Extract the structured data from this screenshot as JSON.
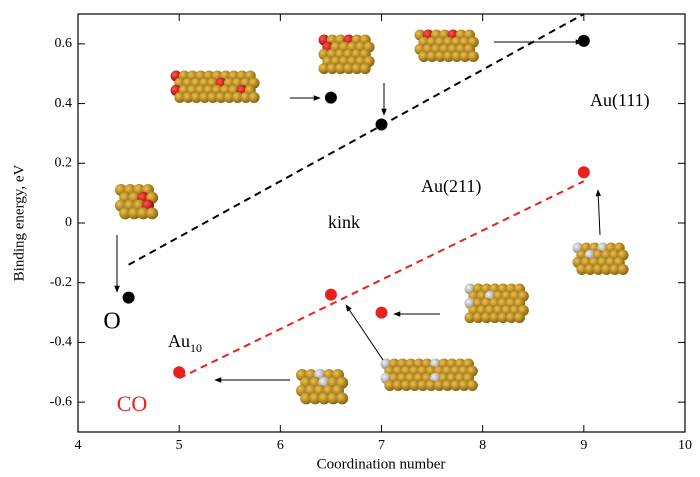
{
  "chart_data": {
    "type": "scatter",
    "x_label": "Coordination number",
    "y_label": "Binding energy, eV",
    "xlim": [
      4,
      10
    ],
    "ylim": [
      -0.7,
      0.7
    ],
    "xticks": [
      4,
      5,
      6,
      7,
      8,
      9,
      10
    ],
    "yticks": [
      -0.6,
      -0.4,
      -0.2,
      0,
      0.2,
      0.4,
      0.6
    ],
    "series": [
      {
        "name": "O",
        "color": "#000000",
        "x": [
          4.5,
          6.5,
          7,
          9
        ],
        "values": [
          -0.25,
          0.42,
          0.33,
          0.61
        ],
        "fit": {
          "x": [
            4.5,
            9
          ],
          "values": [
            -0.14,
            0.7
          ]
        }
      },
      {
        "name": "CO",
        "color": "#e8211d",
        "x": [
          5,
          6.5,
          7,
          9
        ],
        "values": [
          -0.5,
          -0.24,
          -0.3,
          0.17
        ],
        "fit": {
          "x": [
            5,
            9
          ],
          "values": [
            -0.52,
            0.14
          ]
        }
      }
    ],
    "annotations": [
      {
        "text": "Au(111)"
      },
      {
        "text": "Au(211)"
      },
      {
        "text": "kink"
      },
      {
        "text": "Au",
        "sub": "10"
      }
    ]
  }
}
